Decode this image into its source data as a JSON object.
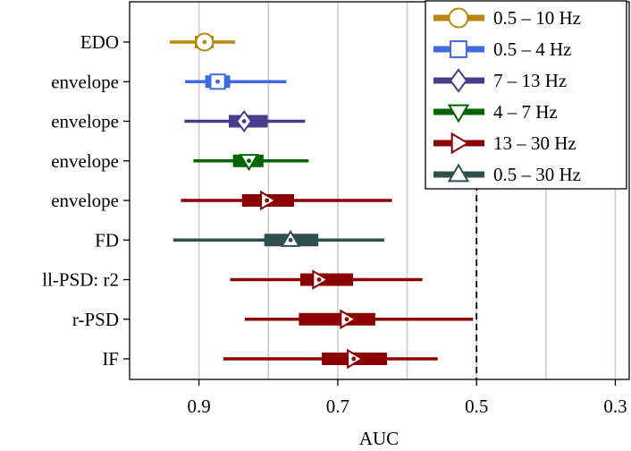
{
  "chart_data": {
    "type": "interval",
    "xlabel": "AUC",
    "x_inverted": true,
    "xlim": [
      1.0,
      0.28
    ],
    "xticks": [
      0.9,
      0.7,
      0.5,
      0.3
    ],
    "xtick_labels": [
      "0.9",
      "0.7",
      "0.5",
      "0.3"
    ],
    "reference_line": 0.5,
    "grid": "vertical",
    "legend_placement": "top-right",
    "legend": [
      {
        "label": "0.5 – 10 Hz",
        "color": "#b8860b",
        "marker": "circle"
      },
      {
        "label": "0.5 – 4 Hz",
        "color": "#4169e1",
        "marker": "square"
      },
      {
        "label": "7 – 13 Hz",
        "color": "#483d8b",
        "marker": "diamond"
      },
      {
        "label": "4 – 7 Hz",
        "color": "#006400",
        "marker": "triangle-down"
      },
      {
        "label": "13 – 30 Hz",
        "color": "#8b0000",
        "marker": "triangle-right"
      },
      {
        "label": "0.5 – 30 Hz",
        "color": "#2f4f4f",
        "marker": "triangle-up"
      }
    ],
    "rows": [
      {
        "label": "EDO",
        "band": "0.5 – 10 Hz",
        "median": 0.892,
        "iqr": [
          0.906,
          0.879
        ],
        "range": [
          0.942,
          0.848
        ]
      },
      {
        "label": "envelope",
        "band": "0.5 – 4 Hz",
        "median": 0.873,
        "iqr": [
          0.891,
          0.855
        ],
        "range": [
          0.92,
          0.774
        ]
      },
      {
        "label": "envelope",
        "band": "7 – 13 Hz",
        "median": 0.835,
        "iqr": [
          0.857,
          0.801
        ],
        "range": [
          0.921,
          0.747
        ]
      },
      {
        "label": "envelope",
        "band": "4 – 7 Hz",
        "median": 0.828,
        "iqr": [
          0.851,
          0.807
        ],
        "range": [
          0.908,
          0.742
        ]
      },
      {
        "label": "envelope",
        "band": "13 – 30 Hz",
        "median": 0.802,
        "iqr": [
          0.838,
          0.763
        ],
        "range": [
          0.926,
          0.622
        ]
      },
      {
        "label": "FD",
        "band": "0.5 – 30 Hz",
        "median": 0.768,
        "iqr": [
          0.806,
          0.728
        ],
        "range": [
          0.937,
          0.633
        ]
      },
      {
        "label": "ll-PSD: r2",
        "band": "13 – 30 Hz",
        "median": 0.727,
        "iqr": [
          0.754,
          0.678
        ],
        "range": [
          0.855,
          0.578
        ]
      },
      {
        "label": "r-PSD",
        "band": "13 – 30 Hz",
        "median": 0.687,
        "iqr": [
          0.756,
          0.646
        ],
        "range": [
          0.834,
          0.505
        ]
      },
      {
        "label": "IF",
        "band": "13 – 30 Hz",
        "median": 0.677,
        "iqr": [
          0.723,
          0.629
        ],
        "range": [
          0.865,
          0.556
        ]
      }
    ]
  }
}
